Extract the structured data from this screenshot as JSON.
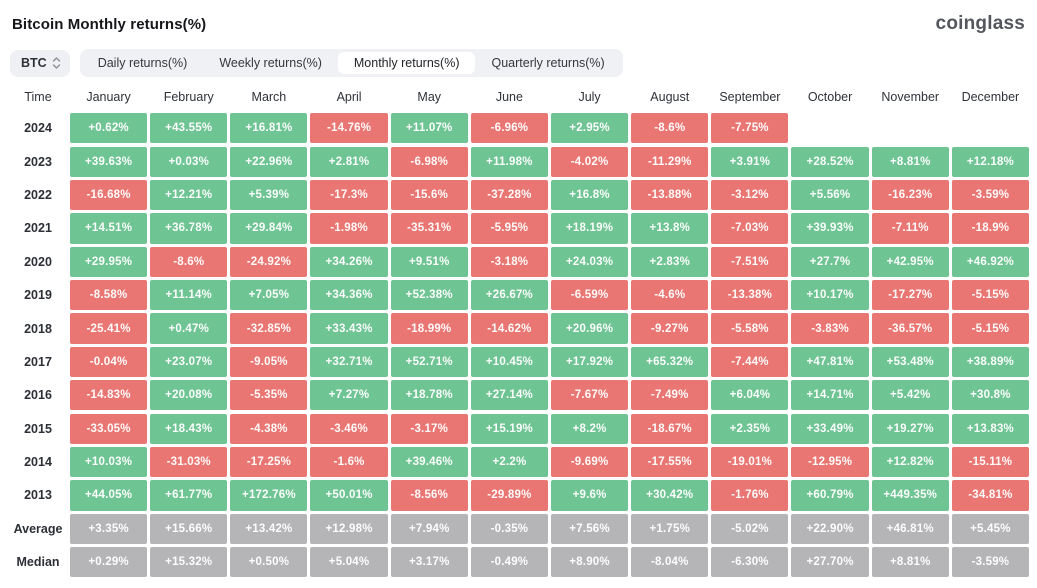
{
  "header": {
    "title": "Bitcoin Monthly returns(%)",
    "logo": "coinglass"
  },
  "controls": {
    "symbol_selector": {
      "value": "BTC",
      "icon": "updown-chevron-icon"
    },
    "tabs": [
      {
        "id": "daily",
        "label": "Daily returns(%)",
        "active": false
      },
      {
        "id": "weekly",
        "label": "Weekly returns(%)",
        "active": false
      },
      {
        "id": "monthly",
        "label": "Monthly returns(%)",
        "active": true
      },
      {
        "id": "quarterly",
        "label": "Quarterly returns(%)",
        "active": false
      }
    ]
  },
  "chart_data": {
    "type": "heatmap",
    "title": "Bitcoin Monthly returns(%)",
    "time_column_label": "Time",
    "columns": [
      "January",
      "February",
      "March",
      "April",
      "May",
      "June",
      "July",
      "August",
      "September",
      "October",
      "November",
      "December"
    ],
    "rows": [
      {
        "label": "2024",
        "neutral": false,
        "values": [
          "+0.62%",
          "+43.55%",
          "+16.81%",
          "-14.76%",
          "+11.07%",
          "-6.96%",
          "+2.95%",
          "-8.6%",
          "-7.75%",
          null,
          null,
          null
        ]
      },
      {
        "label": "2023",
        "neutral": false,
        "values": [
          "+39.63%",
          "+0.03%",
          "+22.96%",
          "+2.81%",
          "-6.98%",
          "+11.98%",
          "-4.02%",
          "-11.29%",
          "+3.91%",
          "+28.52%",
          "+8.81%",
          "+12.18%"
        ]
      },
      {
        "label": "2022",
        "neutral": false,
        "values": [
          "-16.68%",
          "+12.21%",
          "+5.39%",
          "-17.3%",
          "-15.6%",
          "-37.28%",
          "+16.8%",
          "-13.88%",
          "-3.12%",
          "+5.56%",
          "-16.23%",
          "-3.59%"
        ]
      },
      {
        "label": "2021",
        "neutral": false,
        "values": [
          "+14.51%",
          "+36.78%",
          "+29.84%",
          "-1.98%",
          "-35.31%",
          "-5.95%",
          "+18.19%",
          "+13.8%",
          "-7.03%",
          "+39.93%",
          "-7.11%",
          "-18.9%"
        ]
      },
      {
        "label": "2020",
        "neutral": false,
        "values": [
          "+29.95%",
          "-8.6%",
          "-24.92%",
          "+34.26%",
          "+9.51%",
          "-3.18%",
          "+24.03%",
          "+2.83%",
          "-7.51%",
          "+27.7%",
          "+42.95%",
          "+46.92%"
        ]
      },
      {
        "label": "2019",
        "neutral": false,
        "values": [
          "-8.58%",
          "+11.14%",
          "+7.05%",
          "+34.36%",
          "+52.38%",
          "+26.67%",
          "-6.59%",
          "-4.6%",
          "-13.38%",
          "+10.17%",
          "-17.27%",
          "-5.15%"
        ]
      },
      {
        "label": "2018",
        "neutral": false,
        "values": [
          "-25.41%",
          "+0.47%",
          "-32.85%",
          "+33.43%",
          "-18.99%",
          "-14.62%",
          "+20.96%",
          "-9.27%",
          "-5.58%",
          "-3.83%",
          "-36.57%",
          "-5.15%"
        ]
      },
      {
        "label": "2017",
        "neutral": false,
        "values": [
          "-0.04%",
          "+23.07%",
          "-9.05%",
          "+32.71%",
          "+52.71%",
          "+10.45%",
          "+17.92%",
          "+65.32%",
          "-7.44%",
          "+47.81%",
          "+53.48%",
          "+38.89%"
        ]
      },
      {
        "label": "2016",
        "neutral": false,
        "values": [
          "-14.83%",
          "+20.08%",
          "-5.35%",
          "+7.27%",
          "+18.78%",
          "+27.14%",
          "-7.67%",
          "-7.49%",
          "+6.04%",
          "+14.71%",
          "+5.42%",
          "+30.8%"
        ]
      },
      {
        "label": "2015",
        "neutral": false,
        "values": [
          "-33.05%",
          "+18.43%",
          "-4.38%",
          "-3.46%",
          "-3.17%",
          "+15.19%",
          "+8.2%",
          "-18.67%",
          "+2.35%",
          "+33.49%",
          "+19.27%",
          "+13.83%"
        ]
      },
      {
        "label": "2014",
        "neutral": false,
        "values": [
          "+10.03%",
          "-31.03%",
          "-17.25%",
          "-1.6%",
          "+39.46%",
          "+2.2%",
          "-9.69%",
          "-17.55%",
          "-19.01%",
          "-12.95%",
          "+12.82%",
          "-15.11%"
        ]
      },
      {
        "label": "2013",
        "neutral": false,
        "values": [
          "+44.05%",
          "+61.77%",
          "+172.76%",
          "+50.01%",
          "-8.56%",
          "-29.89%",
          "+9.6%",
          "+30.42%",
          "-1.76%",
          "+60.79%",
          "+449.35%",
          "-34.81%"
        ]
      },
      {
        "label": "Average",
        "neutral": true,
        "values": [
          "+3.35%",
          "+15.66%",
          "+13.42%",
          "+12.98%",
          "+7.94%",
          "-0.35%",
          "+7.56%",
          "+1.75%",
          "-5.02%",
          "+22.90%",
          "+46.81%",
          "+5.45%"
        ]
      },
      {
        "label": "Median",
        "neutral": true,
        "values": [
          "+0.29%",
          "+15.32%",
          "+0.50%",
          "+5.04%",
          "+3.17%",
          "-0.49%",
          "+8.90%",
          "-8.04%",
          "-6.30%",
          "+27.70%",
          "+8.81%",
          "-3.59%"
        ]
      }
    ],
    "colors": {
      "positive": "#6fc493",
      "negative": "#e97672",
      "neutral": "#b5b5b7"
    },
    "legend": "green = positive monthly return, red = negative monthly return, gray = summary row"
  }
}
